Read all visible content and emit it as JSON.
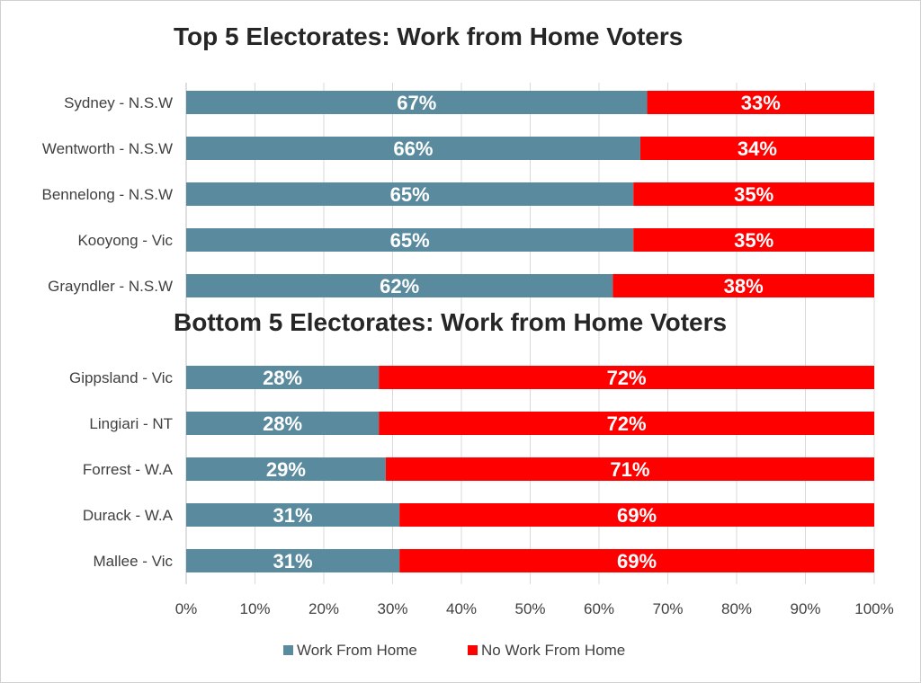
{
  "chart_data": {
    "type": "bar",
    "orientation": "horizontal",
    "stacked": true,
    "xlim": [
      0,
      100
    ],
    "x_ticks": [
      "0%",
      "10%",
      "20%",
      "30%",
      "40%",
      "50%",
      "60%",
      "70%",
      "80%",
      "90%",
      "100%"
    ],
    "grid": true,
    "legend_position": "bottom",
    "series": [
      {
        "name": "Work From Home",
        "color": "#5a8a9e"
      },
      {
        "name": "No Work From Home",
        "color": "#ff0000"
      }
    ],
    "groups": [
      {
        "title": "Top 5 Electorates: Work from Home Voters",
        "categories": [
          "Sydney - N.S.W",
          "Wentworth - N.S.W",
          "Bennelong - N.S.W",
          "Kooyong - Vic",
          "Grayndler - N.S.W"
        ],
        "values": [
          [
            67,
            33
          ],
          [
            66,
            34
          ],
          [
            65,
            35
          ],
          [
            65,
            35
          ],
          [
            62,
            38
          ]
        ],
        "labels": [
          [
            "67%",
            "33%"
          ],
          [
            "66%",
            "34%"
          ],
          [
            "65%",
            "35%"
          ],
          [
            "65%",
            "35%"
          ],
          [
            "62%",
            "38%"
          ]
        ]
      },
      {
        "title": "Bottom 5 Electorates: Work from Home Voters",
        "categories": [
          "Gippsland - Vic",
          "Lingiari - NT",
          "Forrest - W.A",
          "Durack - W.A",
          "Mallee - Vic"
        ],
        "values": [
          [
            28,
            72
          ],
          [
            28,
            72
          ],
          [
            29,
            71
          ],
          [
            31,
            69
          ],
          [
            31,
            69
          ]
        ],
        "labels": [
          [
            "28%",
            "72%"
          ],
          [
            "28%",
            "72%"
          ],
          [
            "29%",
            "71%"
          ],
          [
            "31%",
            "69%"
          ],
          [
            "31%",
            "69%"
          ]
        ]
      }
    ]
  }
}
